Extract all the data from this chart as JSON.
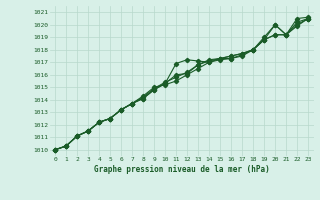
{
  "title": "Graphe pression niveau de la mer (hPa)",
  "bg_color": "#d8f0e8",
  "grid_color": "#b8d8cc",
  "line_color": "#1a5c28",
  "xlim": [
    -0.5,
    23.5
  ],
  "ylim": [
    1009.5,
    1021.5
  ],
  "yticks": [
    1010,
    1011,
    1012,
    1013,
    1014,
    1015,
    1016,
    1017,
    1018,
    1019,
    1020,
    1021
  ],
  "xticks": [
    0,
    1,
    2,
    3,
    4,
    5,
    6,
    7,
    8,
    9,
    10,
    11,
    12,
    13,
    14,
    15,
    16,
    17,
    18,
    19,
    20,
    21,
    22,
    23
  ],
  "series": [
    [
      1010.0,
      1010.3,
      1011.1,
      1011.5,
      1012.2,
      1012.5,
      1013.2,
      1013.7,
      1014.1,
      1014.8,
      1015.3,
      1016.0,
      1016.1,
      1016.8,
      1017.2,
      1017.3,
      1017.5,
      1017.7,
      1018.0,
      1019.0,
      1020.0,
      1019.2,
      1020.2,
      1020.5
    ],
    [
      1010.0,
      1010.3,
      1011.1,
      1011.5,
      1012.2,
      1012.5,
      1013.2,
      1013.7,
      1014.2,
      1014.9,
      1015.4,
      1015.8,
      1016.2,
      1016.8,
      1017.1,
      1017.3,
      1017.5,
      1017.7,
      1018.0,
      1018.8,
      1019.2,
      1019.2,
      1019.9,
      1020.5
    ],
    [
      1010.0,
      1010.3,
      1011.1,
      1011.5,
      1012.2,
      1012.5,
      1013.2,
      1013.7,
      1014.3,
      1015.0,
      1015.2,
      1015.5,
      1016.0,
      1016.5,
      1017.0,
      1017.2,
      1017.3,
      1017.6,
      1018.0,
      1018.8,
      1019.2,
      1019.2,
      1020.0,
      1020.5
    ]
  ],
  "series_upper": [
    1010.0,
    1010.3,
    1011.1,
    1011.5,
    1012.2,
    1012.5,
    1013.2,
    1013.7,
    1014.1,
    1014.8,
    1015.3,
    1016.9,
    1017.2,
    1017.1,
    1017.0,
    1017.3,
    1017.3,
    1017.5,
    1018.0,
    1018.8,
    1020.0,
    1019.2,
    1020.5,
    1020.6
  ]
}
